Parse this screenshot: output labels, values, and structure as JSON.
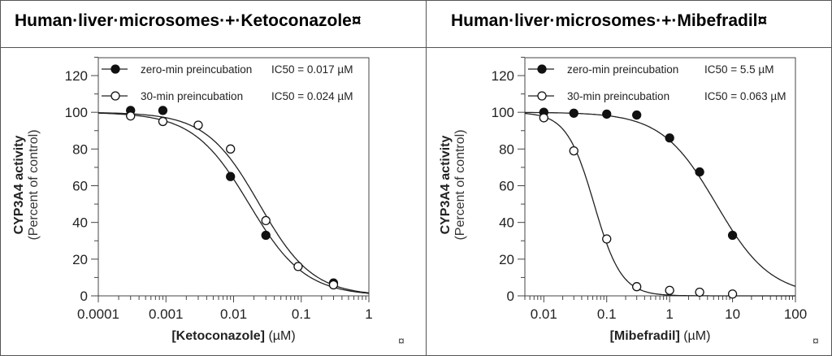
{
  "chart_data": [
    {
      "type": "scatter",
      "title": "Human·liver·microsomes·+·Ketoconazole¤",
      "xlabel_bold": "[Ketoconazole]",
      "xlabel_unit": " (µM)",
      "ylabel_bold": "CYP3A4 activity",
      "ylabel_sub": "(Percent of control)",
      "xscale": "log",
      "xlim": [
        0.0001,
        1
      ],
      "ylim": [
        0,
        130
      ],
      "xticks": [
        "0.0001",
        "0.001",
        "0.01",
        "0.1",
        "1"
      ],
      "yticks": [
        0,
        20,
        40,
        60,
        80,
        100,
        120
      ],
      "grid": false,
      "legend": "top",
      "series": [
        {
          "name": "zero-min preincubation",
          "ic50_label": "IC50 = 0.017 µM",
          "ic50": 0.017,
          "hill": 1.05,
          "marker": "filled",
          "x": [
            0.0003,
            0.0009,
            0.009,
            0.03,
            0.3
          ],
          "y": [
            101,
            101,
            65,
            33,
            7
          ]
        },
        {
          "name": "30-min preincubation",
          "ic50_label": "IC50 = 0.024 µM",
          "ic50": 0.024,
          "hill": 1.1,
          "marker": "open",
          "x": [
            0.0003,
            0.0009,
            0.003,
            0.009,
            0.03,
            0.09,
            0.3
          ],
          "y": [
            98,
            95,
            93,
            80,
            41,
            16,
            6
          ]
        }
      ]
    },
    {
      "type": "scatter",
      "title": "Human·liver·microsomes·+·Mibefradil¤",
      "xlabel_bold": "[Mibefradil]",
      "xlabel_unit": " (µM)",
      "ylabel_bold": "CYP3A4 activity",
      "ylabel_sub": "(Percent of control)",
      "xscale": "log",
      "xlim": [
        0.005,
        100
      ],
      "ylim": [
        0,
        130
      ],
      "xticks": [
        "0.01",
        "0.1",
        "1",
        "10",
        "100"
      ],
      "yticks": [
        0,
        20,
        40,
        60,
        80,
        100,
        120
      ],
      "grid": false,
      "legend": "top",
      "series": [
        {
          "name": "zero-min preincubation",
          "ic50_label": "IC50 = 5.5 µM",
          "ic50": 5.5,
          "hill": 1.0,
          "marker": "filled",
          "x": [
            0.01,
            0.03,
            0.1,
            0.3,
            1,
            3,
            10
          ],
          "y": [
            100,
            99.5,
            99,
            98.5,
            86,
            67.5,
            33
          ]
        },
        {
          "name": "30-min preincubation",
          "ic50_label": "IC50 = 0.063 µM",
          "ic50": 0.063,
          "hill": 2.0,
          "marker": "open",
          "x": [
            0.01,
            0.03,
            0.1,
            0.3,
            1,
            3,
            10
          ],
          "y": [
            97,
            79,
            31,
            5,
            3,
            2,
            1
          ]
        }
      ]
    }
  ],
  "paragraph_mark": "¤"
}
